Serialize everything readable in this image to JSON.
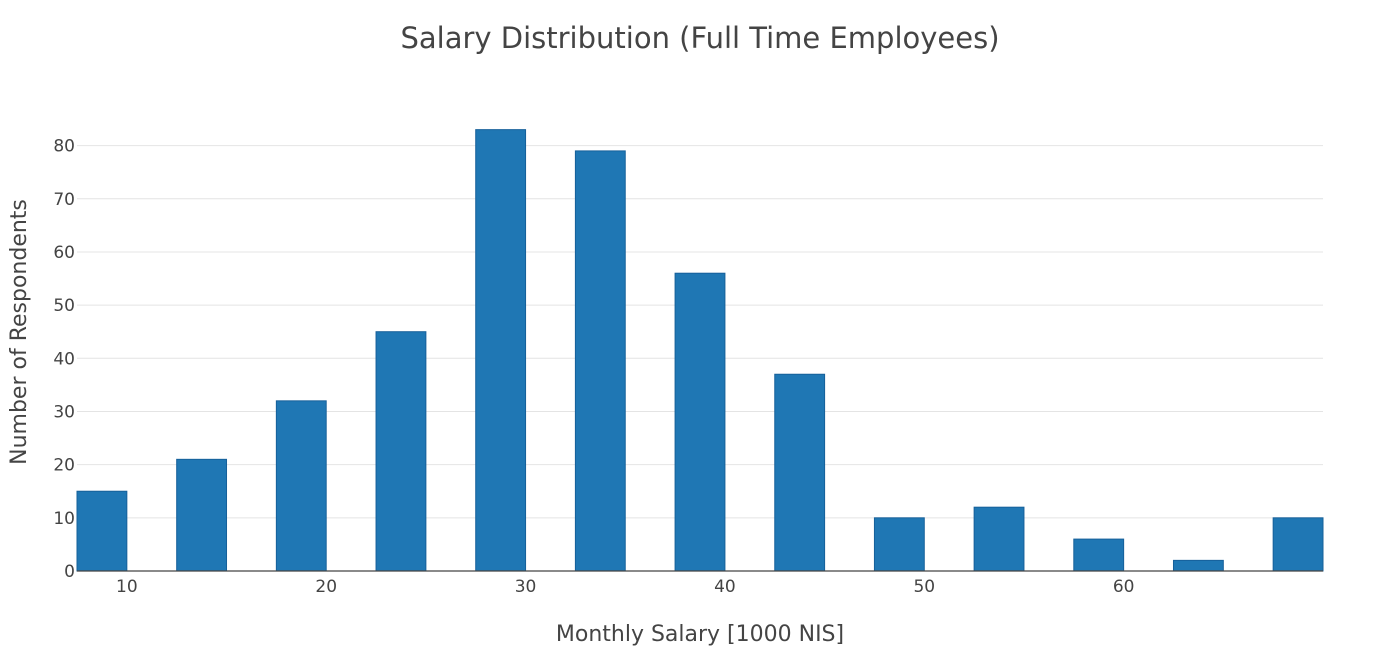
{
  "chart_data": {
    "type": "bar",
    "title": "Salary Distribution (Full Time Employees)",
    "xlabel": "Monthly Salary [1000 NIS]",
    "ylabel": "Number of Respondents",
    "bin_width": 2.5,
    "bins": [
      {
        "x_start": 7.5,
        "x_end": 10,
        "value": 15
      },
      {
        "x_start": 12.5,
        "x_end": 15,
        "value": 21
      },
      {
        "x_start": 17.5,
        "x_end": 20,
        "value": 32
      },
      {
        "x_start": 22.5,
        "x_end": 25,
        "value": 45
      },
      {
        "x_start": 27.5,
        "x_end": 30,
        "value": 83
      },
      {
        "x_start": 32.5,
        "x_end": 35,
        "value": 79
      },
      {
        "x_start": 37.5,
        "x_end": 40,
        "value": 56
      },
      {
        "x_start": 42.5,
        "x_end": 45,
        "value": 37
      },
      {
        "x_start": 47.5,
        "x_end": 50,
        "value": 10
      },
      {
        "x_start": 52.5,
        "x_end": 55,
        "value": 12
      },
      {
        "x_start": 57.5,
        "x_end": 60,
        "value": 6
      },
      {
        "x_start": 62.5,
        "x_end": 65,
        "value": 2
      },
      {
        "x_start": 67.5,
        "x_end": 70,
        "value": 10
      }
    ],
    "xlim": [
      7.5,
      70
    ],
    "ylim": [
      0,
      85
    ],
    "x_ticks": [
      10,
      20,
      30,
      40,
      50,
      60
    ],
    "y_ticks": [
      0,
      10,
      20,
      30,
      40,
      50,
      60,
      70,
      80
    ],
    "grid": true,
    "color": "#1f77b4"
  }
}
